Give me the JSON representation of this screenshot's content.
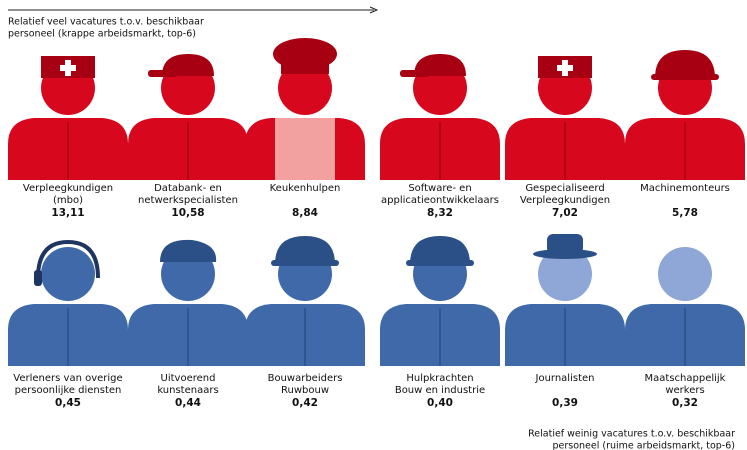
{
  "top": {
    "caption": [
      "Relatief veel vacatures t.o.v. beschikbaar",
      "personeel (krappe arbeidsmarkt, top-6)"
    ],
    "items": [
      {
        "label": [
          "Verpleegkundigen",
          "(mbo)"
        ],
        "value": "13,11"
      },
      {
        "label": [
          "Databank- en",
          "netwerkspecialisten"
        ],
        "value": "10,58"
      },
      {
        "label": [
          "Keukenhulpen"
        ],
        "value": "8,84"
      },
      {
        "label": [
          "Software- en",
          "applicatieontwikkelaars"
        ],
        "value": "8,32"
      },
      {
        "label": [
          "Gespecialiseerd",
          "Verpleegkundigen"
        ],
        "value": "7,02"
      },
      {
        "label": [
          "Machinemonteurs"
        ],
        "value": "5,78"
      }
    ]
  },
  "bottom": {
    "caption": [
      "Relatief weinig vacatures t.o.v. beschikbaar",
      "personeel (ruime arbeidsmarkt, top-6)"
    ],
    "items": [
      {
        "label": [
          "Verleners van overige",
          "persoonlijke diensten"
        ],
        "value": "0,45"
      },
      {
        "label": [
          "Uitvoerend",
          "kunstenaars"
        ],
        "value": "0,44"
      },
      {
        "label": [
          "Bouwarbeiders",
          "Ruwbouw"
        ],
        "value": "0,42"
      },
      {
        "label": [
          "Hulpkrachten",
          "Bouw en industrie"
        ],
        "value": "0,40"
      },
      {
        "label": [
          "Journalisten"
        ],
        "value": "0,39"
      },
      {
        "label": [
          "Maatschappelijk",
          "werkers"
        ],
        "value": "0,32"
      }
    ]
  }
}
